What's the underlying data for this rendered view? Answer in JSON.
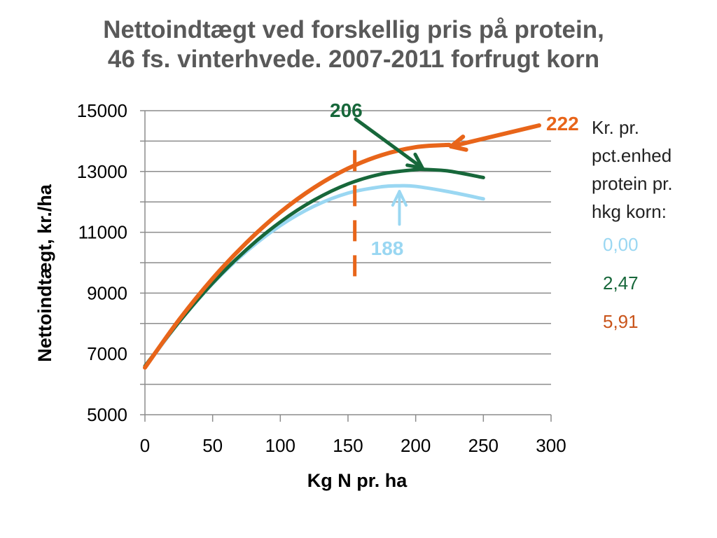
{
  "chart_data": {
    "type": "line",
    "title": "Nettoindtægt ved forskellig pris på protein,",
    "subtitle": "46 fs. vinterhvede. 2007-2011 forfrugt korn",
    "xlabel": "Kg N pr. ha",
    "ylabel": "Nettoindtægt, kr./ha",
    "xlim": [
      0,
      300
    ],
    "ylim": [
      5000,
      15000
    ],
    "xticks": [
      0,
      50,
      100,
      150,
      200,
      250,
      300
    ],
    "yticks": [
      5000,
      7000,
      9000,
      11000,
      13000,
      15000
    ],
    "grid": "horizontal, every 1000",
    "legend_title": [
      "Kr. pr.",
      "pct.enhed",
      "protein pr.",
      "hkg korn:"
    ],
    "series": [
      {
        "name": "0,00",
        "color": "#9ad7f2",
        "optimum_label": "188",
        "optimum_x": 188,
        "x": [
          0,
          25,
          50,
          75,
          100,
          125,
          150,
          175,
          188,
          200,
          225,
          250
        ],
        "y": [
          6550,
          8030,
          9310,
          10370,
          11220,
          11860,
          12290,
          12500,
          12530,
          12510,
          12330,
          12100
        ]
      },
      {
        "name": "2,47",
        "color": "#17673a",
        "optimum_label": "206",
        "optimum_x": 206,
        "x": [
          0,
          25,
          50,
          75,
          100,
          125,
          150,
          175,
          200,
          206,
          225,
          250
        ],
        "y": [
          6600,
          8040,
          9330,
          10430,
          11340,
          12060,
          12590,
          12920,
          13060,
          13070,
          13010,
          12800
        ]
      },
      {
        "name": "5,91",
        "color": "#e8651a",
        "optimum_label": "222",
        "optimum_x": 222,
        "x": [
          0,
          25,
          50,
          75,
          100,
          125,
          150,
          175,
          200,
          222,
          225
        ],
        "y": [
          6550,
          8110,
          9480,
          10660,
          11660,
          12470,
          13100,
          13540,
          13800,
          13870,
          13869
        ]
      }
    ],
    "reference_line": {
      "x": 155,
      "y_range": [
        9500,
        13700
      ],
      "style": "dashed",
      "color": "#e8651a"
    }
  }
}
